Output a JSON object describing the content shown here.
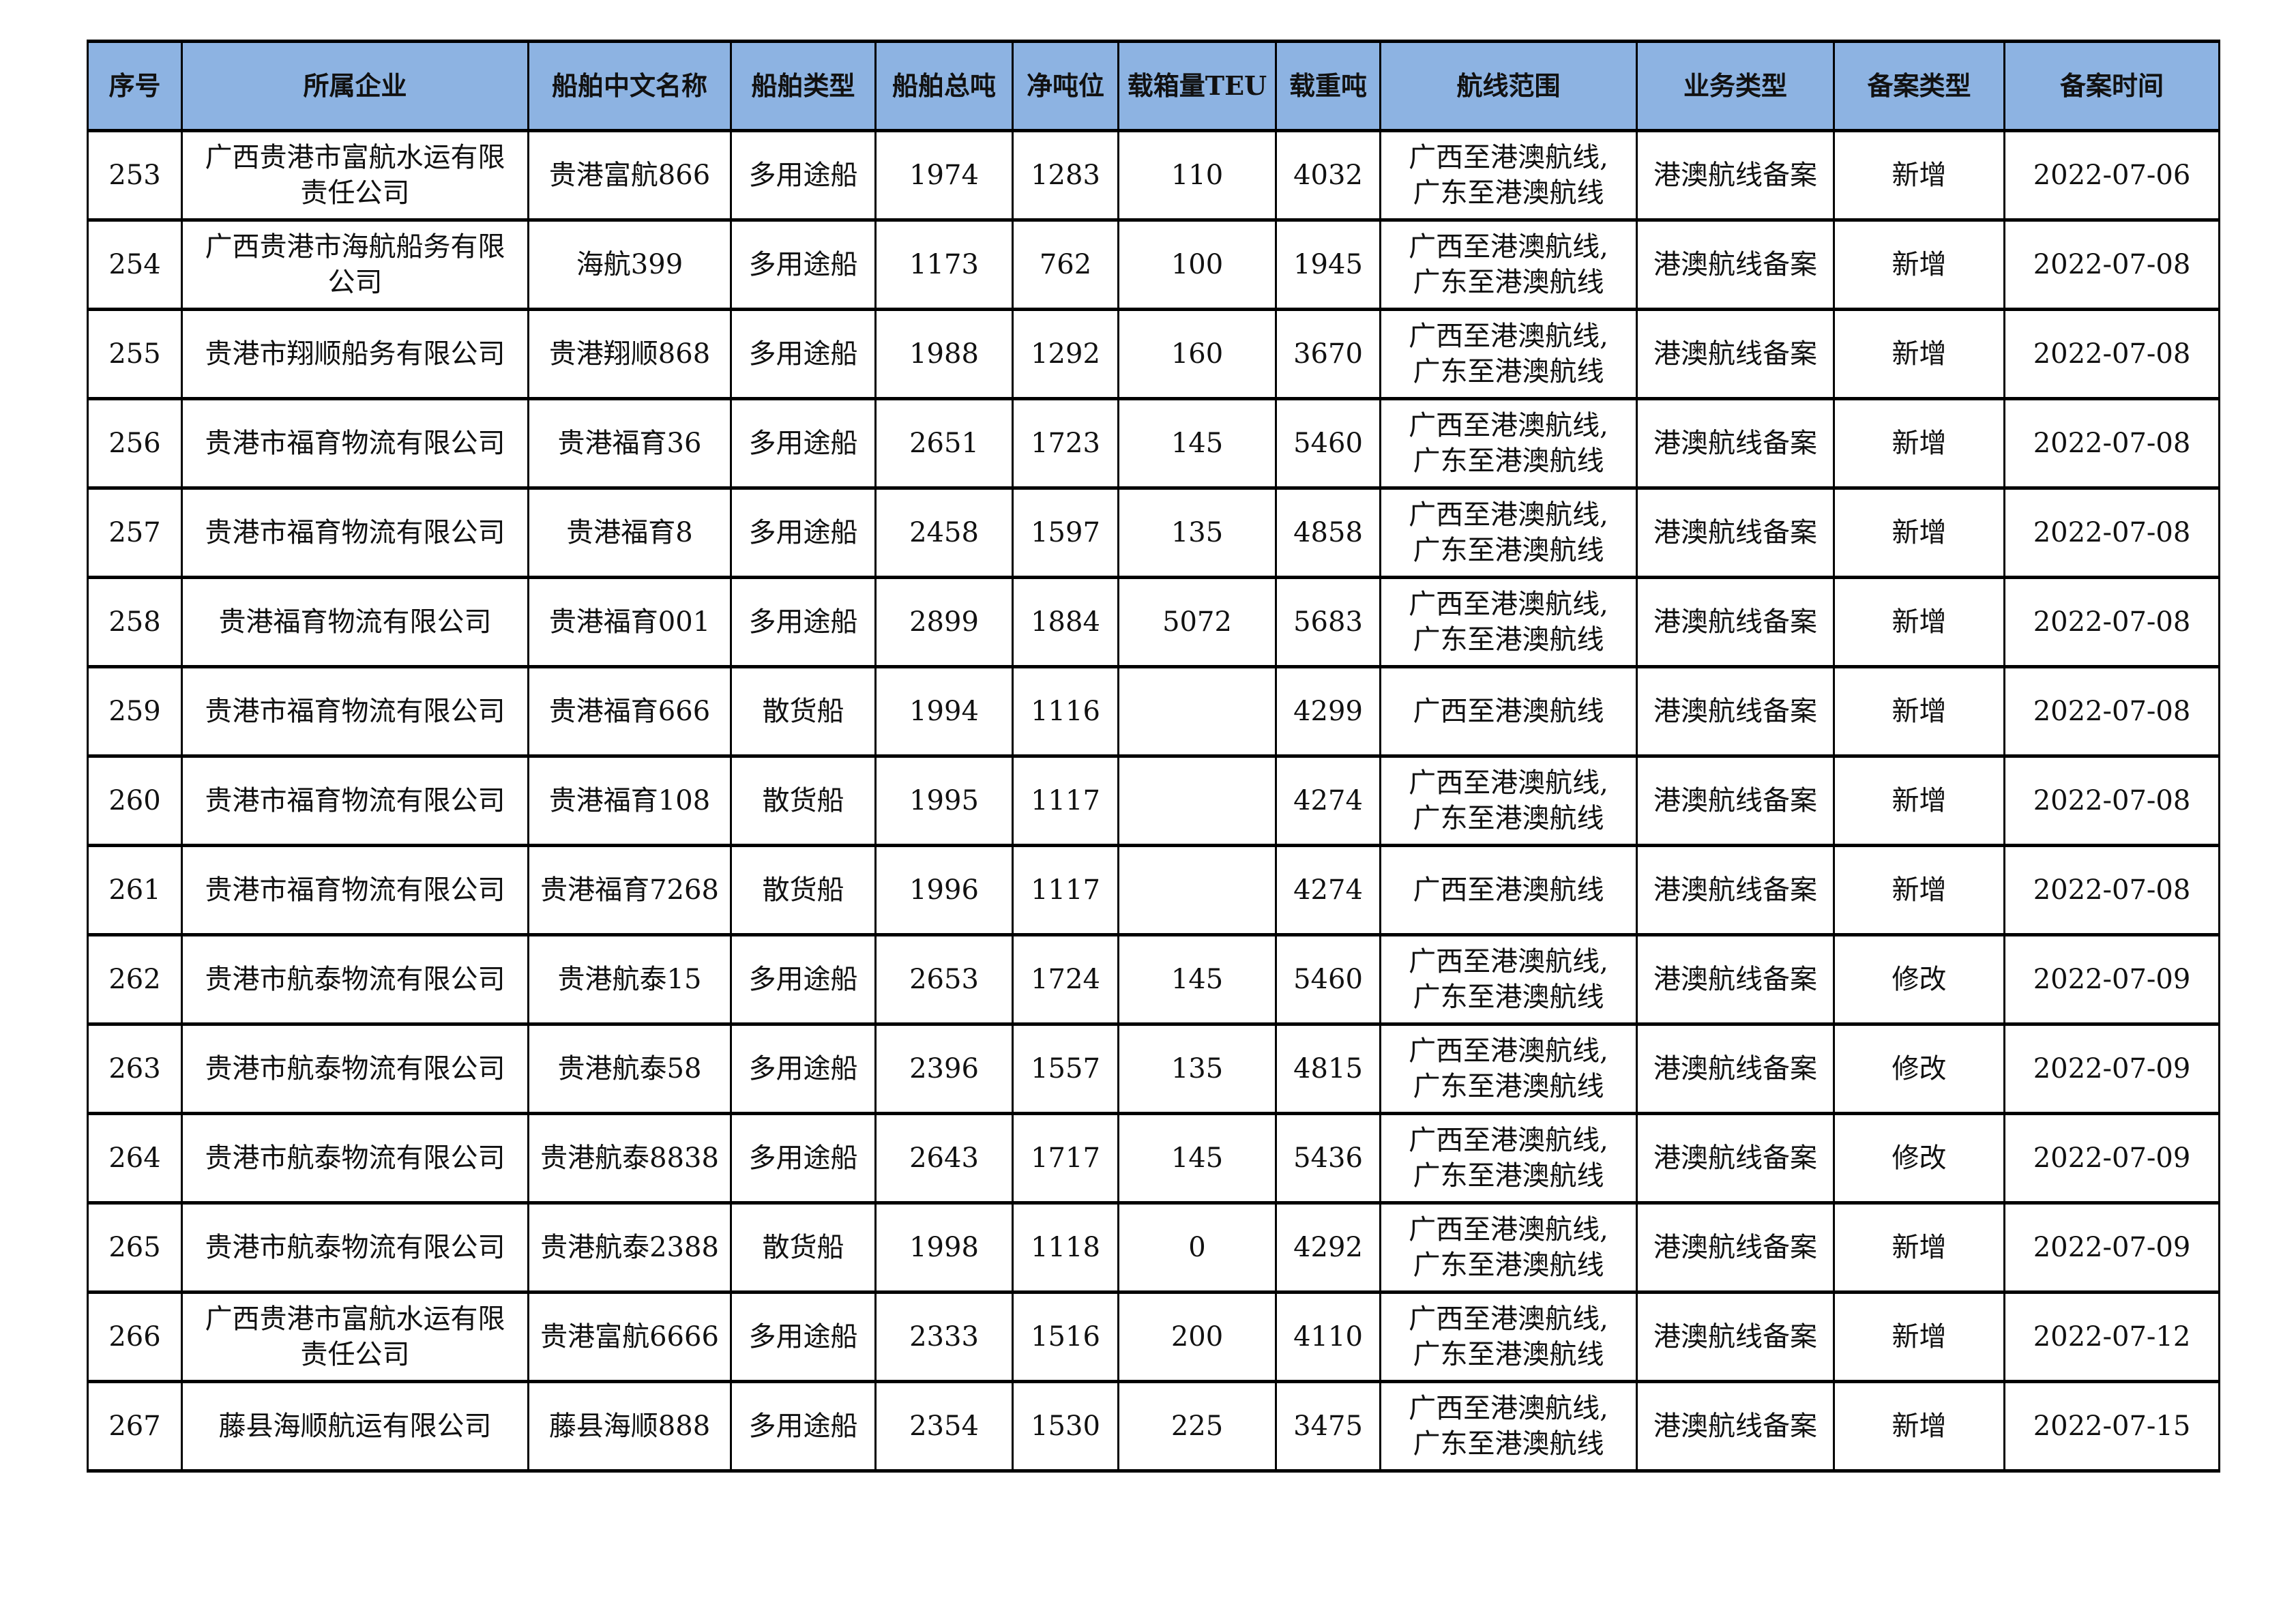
{
  "header_color": "#8db3e2",
  "columns": [
    "序号",
    "所属企业",
    "船舶中文名称",
    "船舶类型",
    "船舶总吨",
    "净吨位",
    "载箱量TEU",
    "载重吨",
    "航线范围",
    "业务类型",
    "备案类型",
    "备案时间"
  ],
  "rows": [
    [
      "253",
      "广西贵港市富航水运有限\n责任公司",
      "贵港富航866",
      "多用途船",
      "1974",
      "1283",
      "110",
      "4032",
      "广西至港澳航线,\n广东至港澳航线",
      "港澳航线备案",
      "新增",
      "2022-07-06"
    ],
    [
      "254",
      "广西贵港市海航船务有限\n公司",
      "海航399",
      "多用途船",
      "1173",
      "762",
      "100",
      "1945",
      "广西至港澳航线,\n广东至港澳航线",
      "港澳航线备案",
      "新增",
      "2022-07-08"
    ],
    [
      "255",
      "贵港市翔顺船务有限公司",
      "贵港翔顺868",
      "多用途船",
      "1988",
      "1292",
      "160",
      "3670",
      "广西至港澳航线,\n广东至港澳航线",
      "港澳航线备案",
      "新增",
      "2022-07-08"
    ],
    [
      "256",
      "贵港市福育物流有限公司",
      "贵港福育36",
      "多用途船",
      "2651",
      "1723",
      "145",
      "5460",
      "广西至港澳航线,\n广东至港澳航线",
      "港澳航线备案",
      "新增",
      "2022-07-08"
    ],
    [
      "257",
      "贵港市福育物流有限公司",
      "贵港福育8",
      "多用途船",
      "2458",
      "1597",
      "135",
      "4858",
      "广西至港澳航线,\n广东至港澳航线",
      "港澳航线备案",
      "新增",
      "2022-07-08"
    ],
    [
      "258",
      "贵港福育物流有限公司",
      "贵港福育001",
      "多用途船",
      "2899",
      "1884",
      "5072",
      "5683",
      "广西至港澳航线,\n广东至港澳航线",
      "港澳航线备案",
      "新增",
      "2022-07-08"
    ],
    [
      "259",
      "贵港市福育物流有限公司",
      "贵港福育666",
      "散货船",
      "1994",
      "1116",
      "",
      "4299",
      "广西至港澳航线",
      "港澳航线备案",
      "新增",
      "2022-07-08"
    ],
    [
      "260",
      "贵港市福育物流有限公司",
      "贵港福育108",
      "散货船",
      "1995",
      "1117",
      "",
      "4274",
      "广西至港澳航线,\n广东至港澳航线",
      "港澳航线备案",
      "新增",
      "2022-07-08"
    ],
    [
      "261",
      "贵港市福育物流有限公司",
      "贵港福育7268",
      "散货船",
      "1996",
      "1117",
      "",
      "4274",
      "广西至港澳航线",
      "港澳航线备案",
      "新增",
      "2022-07-08"
    ],
    [
      "262",
      "贵港市航泰物流有限公司",
      "贵港航泰15",
      "多用途船",
      "2653",
      "1724",
      "145",
      "5460",
      "广西至港澳航线,\n广东至港澳航线",
      "港澳航线备案",
      "修改",
      "2022-07-09"
    ],
    [
      "263",
      "贵港市航泰物流有限公司",
      "贵港航泰58",
      "多用途船",
      "2396",
      "1557",
      "135",
      "4815",
      "广西至港澳航线,\n广东至港澳航线",
      "港澳航线备案",
      "修改",
      "2022-07-09"
    ],
    [
      "264",
      "贵港市航泰物流有限公司",
      "贵港航泰8838",
      "多用途船",
      "2643",
      "1717",
      "145",
      "5436",
      "广西至港澳航线,\n广东至港澳航线",
      "港澳航线备案",
      "修改",
      "2022-07-09"
    ],
    [
      "265",
      "贵港市航泰物流有限公司",
      "贵港航泰2388",
      "散货船",
      "1998",
      "1118",
      "0",
      "4292",
      "广西至港澳航线,\n广东至港澳航线",
      "港澳航线备案",
      "新增",
      "2022-07-09"
    ],
    [
      "266",
      "广西贵港市富航水运有限\n责任公司",
      "贵港富航6666",
      "多用途船",
      "2333",
      "1516",
      "200",
      "4110",
      "广西至港澳航线,\n广东至港澳航线",
      "港澳航线备案",
      "新增",
      "2022-07-12"
    ],
    [
      "267",
      "藤县海顺航运有限公司",
      "藤县海顺888",
      "多用途船",
      "2354",
      "1530",
      "225",
      "3475",
      "广西至港澳航线,\n广东至港澳航线",
      "港澳航线备案",
      "新增",
      "2022-07-15"
    ]
  ]
}
